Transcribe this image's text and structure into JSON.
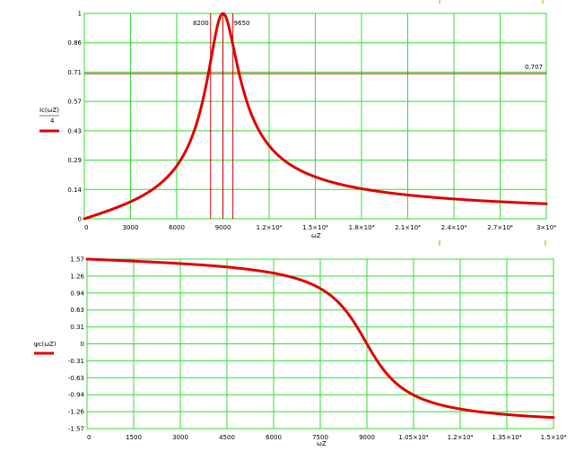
{
  "chart_data": [
    {
      "type": "line",
      "ylabel_top": "Ic(ωZ)",
      "ylabel_bottom": "4",
      "xlabel": "ωZ",
      "xlim": [
        0,
        30000
      ],
      "ylim": [
        0,
        1
      ],
      "x_ticks": [
        "0",
        "3000",
        "6000",
        "9000",
        "1.2×10⁴",
        "1.5×10⁴",
        "1.8×10⁴",
        "2.1×10⁴",
        "2.4×10⁴",
        "2.7×10⁴",
        "3×10⁴"
      ],
      "x_tick_values": [
        0,
        3000,
        6000,
        9000,
        12000,
        15000,
        18000,
        21000,
        24000,
        27000,
        30000
      ],
      "y_ticks": [
        "0",
        "0.14",
        "0.29",
        "0.43",
        "0.57",
        "0.71",
        "0.86",
        "1"
      ],
      "y_tick_values": [
        0,
        0.1429,
        0.2857,
        0.4286,
        0.5714,
        0.7143,
        0.8571,
        1
      ],
      "model": {
        "kind": "resonance",
        "f0": 9000,
        "Q": 4.5
      },
      "hline": {
        "y": 0.707,
        "label": "0.707"
      },
      "vlines": [
        {
          "x": 8200,
          "label": "8200"
        },
        {
          "x": 9000,
          "label": ""
        },
        {
          "x": 9650,
          "label": "9650"
        }
      ],
      "color": "#e00000",
      "grid": true
    },
    {
      "type": "line",
      "ylabel": "ψc(ωZ)",
      "xlabel": "ωZ",
      "xlim": [
        0,
        15000
      ],
      "ylim": [
        -1.57,
        1.57
      ],
      "x_ticks": [
        "0",
        "1500",
        "3000",
        "4500",
        "6000",
        "7500",
        "9000",
        "1.05×10⁴",
        "1.2×10⁴",
        "1.35×10⁴",
        "1.5×10⁴"
      ],
      "x_tick_values": [
        0,
        1500,
        3000,
        4500,
        6000,
        7500,
        9000,
        10500,
        12000,
        13500,
        15000
      ],
      "y_ticks": [
        "1.57",
        "1.26",
        "0.94",
        "0.63",
        "0.31",
        "0",
        "-0.31",
        "-0.63",
        "-0.94",
        "-1.26",
        "-1.57"
      ],
      "y_tick_values": [
        1.57,
        1.256,
        0.942,
        0.628,
        0.314,
        0,
        -0.314,
        -0.628,
        -0.942,
        -1.256,
        -1.57
      ],
      "model": {
        "kind": "phase",
        "f0": 9000,
        "Q": 4.5
      },
      "color": "#e00000",
      "grid": true
    }
  ]
}
